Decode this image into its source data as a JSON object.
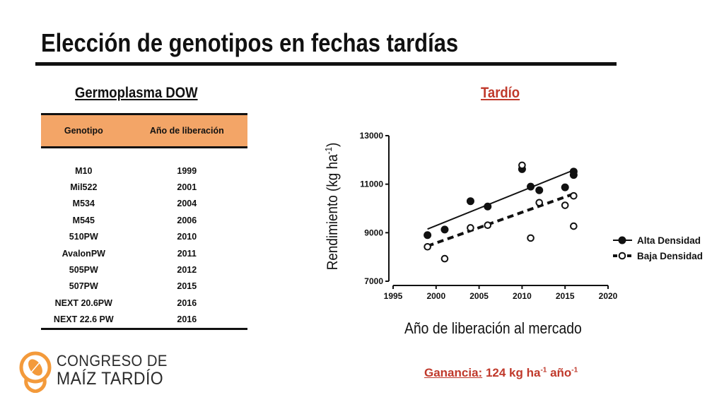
{
  "slide": {
    "title": "Elección de genotipos en fechas tardías",
    "left_subtitle": "Germoplasma DOW",
    "right_subtitle": "Tardío"
  },
  "table": {
    "headers": [
      "Genotipo",
      "Año de liberación"
    ],
    "rows": [
      [
        "M10",
        "1999"
      ],
      [
        "Mil522",
        "2001"
      ],
      [
        "M534",
        "2004"
      ],
      [
        "M545",
        "2006"
      ],
      [
        "510PW",
        "2010"
      ],
      [
        "AvalonPW",
        "2011"
      ],
      [
        "505PW",
        "2012"
      ],
      [
        "507PW",
        "2015"
      ],
      [
        "NEXT 20.6PW",
        "2016"
      ],
      [
        "NEXT 22.6 PW",
        "2016"
      ]
    ],
    "header_color": "#f3a567"
  },
  "gain": {
    "label": "Ganancia:",
    "value": "124 kg ha",
    "exp1": "-1",
    "unit2": " año",
    "exp2": "-1",
    "color": "#c0392b"
  },
  "logo": {
    "line1": "CONGRESO DE",
    "line2": "MAÍZ TARDÍO",
    "accent_color": "#f39a3b"
  },
  "chart_data": {
    "type": "scatter",
    "title": "Tardío",
    "xlabel": "Año de liberación al mercado",
    "ylabel_base": "Rendimiento (kg ha",
    "ylabel_exp": "-1",
    "ylabel_end": ")",
    "xlim": [
      1995,
      2020
    ],
    "ylim": [
      7000,
      13000
    ],
    "xticks": [
      1995,
      2000,
      2005,
      2010,
      2015,
      2020
    ],
    "yticks": [
      7000,
      9000,
      11000,
      13000
    ],
    "legend_position": "right",
    "series": [
      {
        "name": "Alta Densidad",
        "marker": "filled",
        "line": "solid",
        "x": [
          1999,
          2001,
          2004,
          2006,
          2010,
          2011,
          2012,
          2015,
          2016,
          2016
        ],
        "y": [
          8900,
          9130,
          10300,
          10080,
          11620,
          10900,
          10750,
          10870,
          11520,
          11380
        ],
        "trend": [
          [
            1999,
            9150
          ],
          [
            2016,
            11580
          ]
        ]
      },
      {
        "name": "Baja Densidad",
        "marker": "open",
        "line": "dashed",
        "x": [
          1999,
          2001,
          2004,
          2006,
          2010,
          2011,
          2012,
          2015,
          2016,
          2016
        ],
        "y": [
          8420,
          7930,
          9200,
          9310,
          11780,
          8780,
          10240,
          10130,
          10520,
          9270
        ],
        "trend": [
          [
            1999,
            8450
          ],
          [
            2016,
            10600
          ]
        ]
      }
    ]
  }
}
